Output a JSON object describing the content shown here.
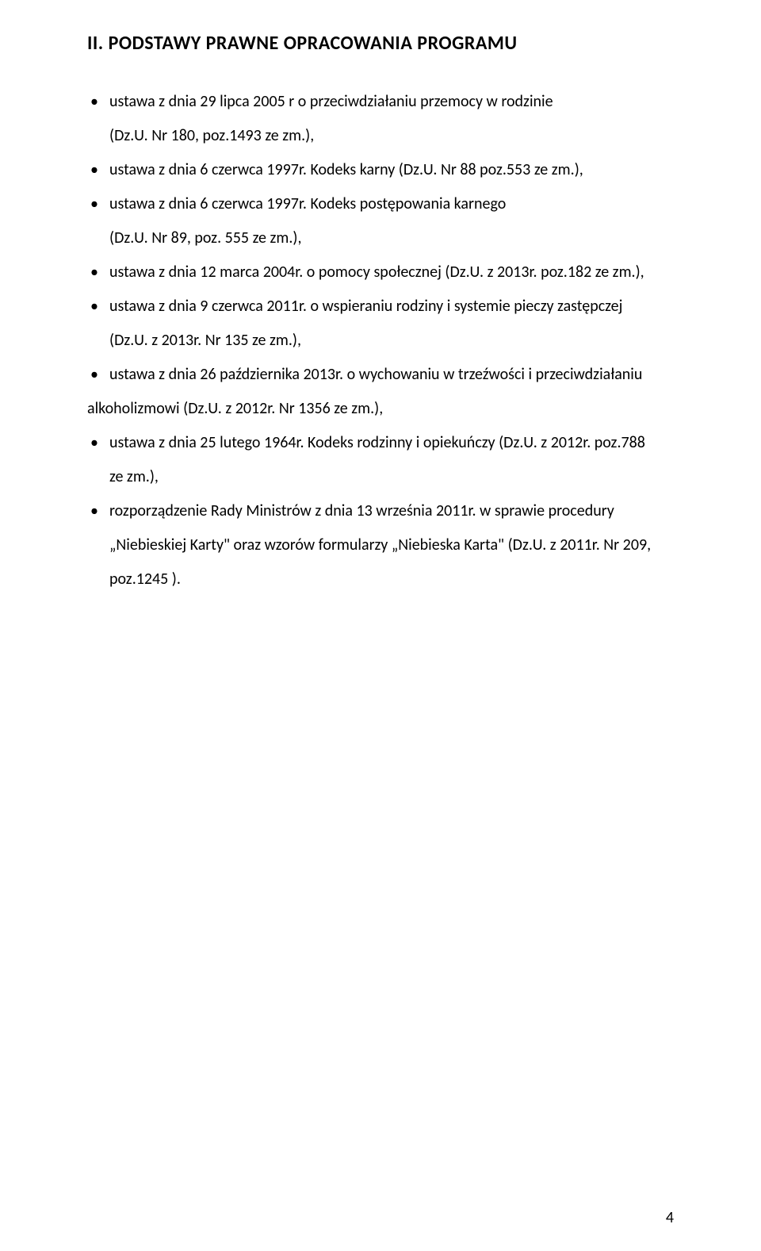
{
  "heading": "II.  PODSTAWY  PRAWNE  OPRACOWANIA PROGRAMU",
  "items": [
    {
      "line1": "ustawa z dnia 29 lipca 2005 r o przeciwdziałaniu przemocy w rodzinie",
      "line2": "(Dz.U. Nr 180, poz.1493 ze zm.),"
    },
    {
      "line1": "ustawa z dnia 6 czerwca 1997r. Kodeks karny (Dz.U. Nr 88 poz.553 ze zm.),"
    },
    {
      "line1": "ustawa z dnia 6 czerwca 1997r. Kodeks postępowania karnego",
      "line2": "(Dz.U. Nr 89, poz. 555 ze zm.),"
    },
    {
      "line1": "ustawa z dnia 12 marca 2004r. o pomocy  społecznej (Dz.U. z 2013r. poz.182 ze zm.),"
    },
    {
      "line1": "ustawa z dnia 9 czerwca 2011r. o wspieraniu rodziny i systemie pieczy zastępczej",
      "line2": "(Dz.U. z 2013r. Nr 135 ze zm.),"
    },
    {
      "line1": "ustawa z dnia 26 października 2013r. o wychowaniu w trzeźwości i przeciwdziałaniu",
      "line3": "alkoholizmowi (Dz.U. z 2012r. Nr 1356 ze zm.),"
    },
    {
      "line1": "ustawa z dnia 25 lutego 1964r. Kodeks rodzinny i opiekuńczy (Dz.U. z 2012r. poz.788",
      "line2": "ze zm.),"
    },
    {
      "line1": "rozporządzenie Rady Ministrów z dnia 13 września 2011r. w sprawie procedury",
      "line2": "„Niebieskiej Karty\" oraz wzorów formularzy „Niebieska Karta\" (Dz.U. z 2011r. Nr 209,",
      "line4": "poz.1245 )."
    }
  ],
  "page_number": "4"
}
